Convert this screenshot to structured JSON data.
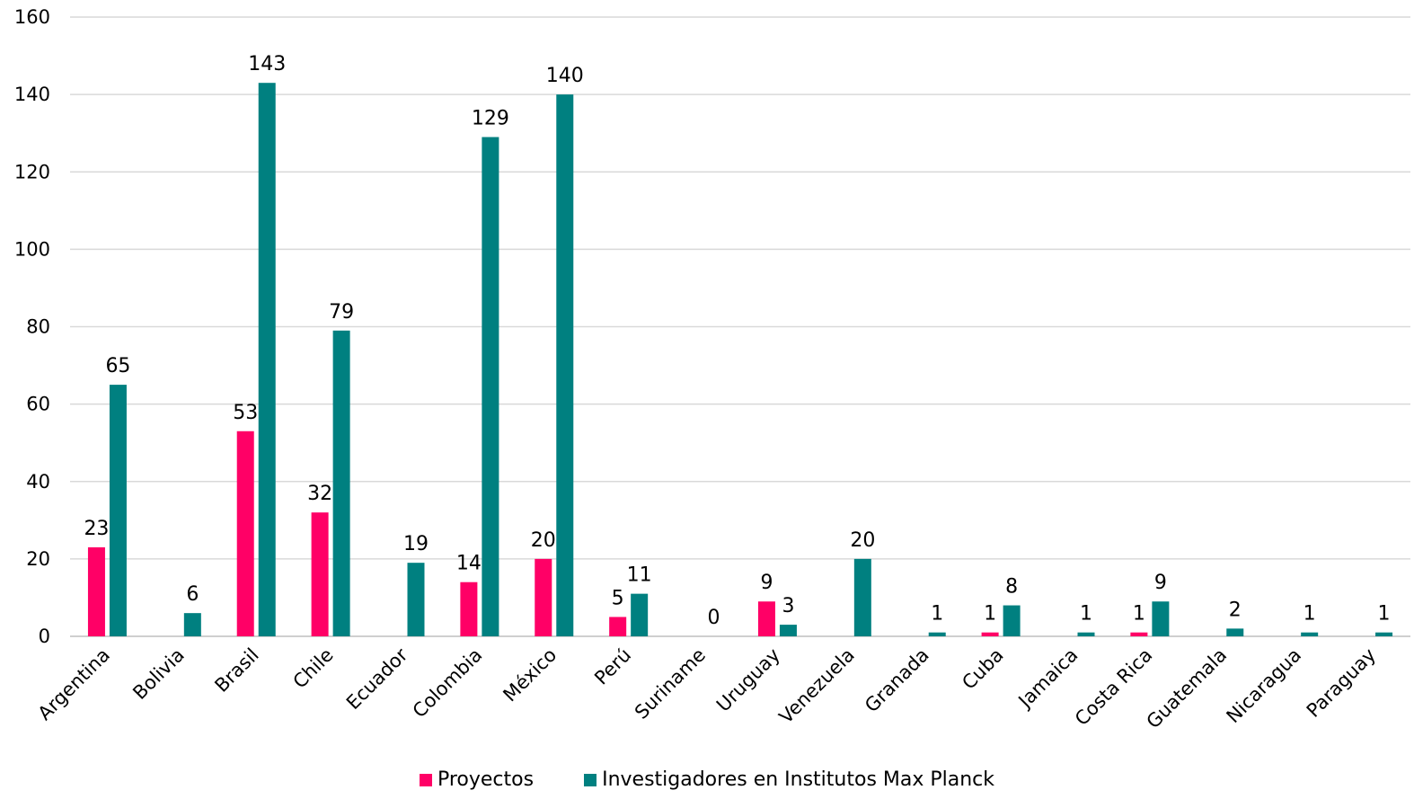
{
  "chart_data": {
    "type": "bar",
    "categories": [
      "Argentina",
      "Bolivia",
      "Brasil",
      "Chile",
      "Ecuador",
      "Colombia",
      "México",
      "Perú",
      "Suriname",
      "Uruguay",
      "Venezuela",
      "Granada",
      "Cuba",
      "Jamaica",
      "Costa Rica",
      "Guatemala",
      "Nicaragua",
      "Paraguay"
    ],
    "series": [
      {
        "name": "Proyectos",
        "color": "#ff0066",
        "values": [
          23,
          null,
          53,
          32,
          null,
          14,
          20,
          5,
          null,
          9,
          null,
          null,
          1,
          null,
          1,
          null,
          null,
          null
        ]
      },
      {
        "name": "Investigadores en Institutos Max Planck",
        "color": "#008080",
        "values": [
          65,
          6,
          143,
          79,
          19,
          129,
          140,
          11,
          0,
          3,
          20,
          1,
          8,
          1,
          9,
          2,
          1,
          1
        ]
      }
    ],
    "yticks": [
      "0",
      "20",
      "40",
      "60",
      "80",
      "100",
      "120",
      "140",
      "160"
    ],
    "ylim": [
      0,
      160
    ],
    "grid": true,
    "legend_position": "bottom",
    "title": "",
    "xlabel": "",
    "ylabel": ""
  }
}
